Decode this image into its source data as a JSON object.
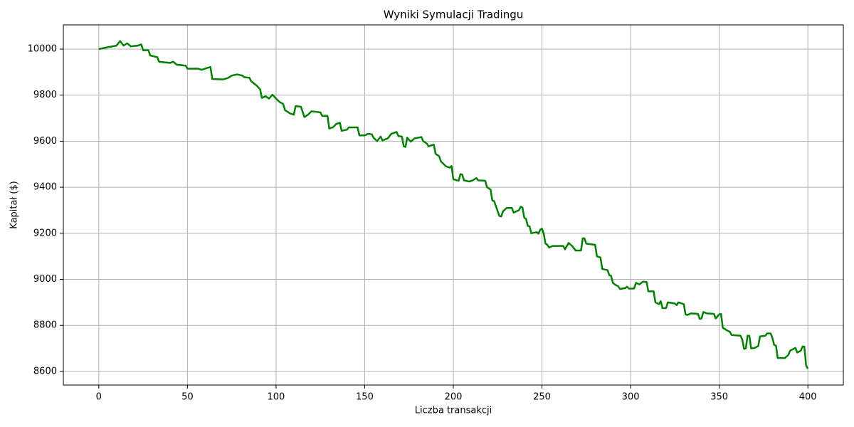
{
  "chart_data": {
    "type": "line",
    "title": "Wyniki Symulacji Tradingu",
    "x_label": "Liczba transakcji",
    "y_label": "Kapitał ($)",
    "x": [
      0,
      5,
      10,
      12,
      14,
      16,
      18,
      22,
      24,
      25,
      28,
      29,
      33,
      34,
      40,
      42,
      44,
      49,
      50,
      56,
      58,
      62,
      63,
      64,
      70,
      73,
      75,
      78,
      81,
      82,
      85,
      86,
      89,
      91,
      92,
      94,
      96,
      98,
      100,
      102,
      104,
      105,
      108,
      110,
      111,
      114,
      116,
      118,
      120,
      125,
      126,
      129,
      130,
      132,
      134,
      136,
      137,
      140,
      141,
      146,
      147,
      150,
      152,
      154,
      155,
      157,
      159,
      160,
      163,
      165,
      168,
      169,
      171,
      172,
      173,
      174,
      176,
      178,
      182,
      183,
      185,
      186,
      189,
      190,
      192,
      193,
      196,
      198,
      199,
      200,
      203,
      204,
      205,
      206,
      209,
      211,
      213,
      214,
      218,
      219,
      221,
      222,
      223,
      224,
      226,
      227,
      228,
      230,
      233,
      234,
      237,
      238,
      239,
      240,
      241,
      242,
      243,
      244,
      247,
      248,
      249,
      250,
      251,
      252,
      253,
      254,
      256,
      262,
      263,
      265,
      267,
      269,
      272,
      273,
      274,
      275,
      280,
      281,
      283,
      284,
      287,
      288,
      289,
      290,
      291,
      293,
      294,
      297,
      298,
      299,
      302,
      303,
      305,
      307,
      309,
      310,
      313,
      314,
      316,
      317,
      318,
      320,
      321,
      325,
      326,
      327,
      330,
      331,
      332,
      334,
      338,
      339,
      340,
      341,
      343,
      347,
      348,
      350,
      351,
      352,
      354,
      356,
      357,
      362,
      363,
      364,
      365,
      366,
      367,
      368,
      370,
      372,
      373,
      376,
      377,
      379,
      380,
      381,
      382,
      383,
      387,
      389,
      390,
      393,
      394,
      396,
      397,
      398,
      399,
      400
    ],
    "values": [
      10000,
      10008,
      10015,
      10035,
      10015,
      10025,
      10012,
      10015,
      10020,
      9995,
      9995,
      9972,
      9965,
      9945,
      9940,
      9945,
      9932,
      9928,
      9915,
      9915,
      9910,
      9920,
      9922,
      9870,
      9868,
      9875,
      9885,
      9890,
      9885,
      9878,
      9875,
      9860,
      9842,
      9825,
      9788,
      9795,
      9785,
      9802,
      9785,
      9770,
      9762,
      9735,
      9720,
      9715,
      9752,
      9750,
      9705,
      9715,
      9730,
      9725,
      9710,
      9710,
      9655,
      9660,
      9675,
      9680,
      9645,
      9650,
      9660,
      9660,
      9625,
      9625,
      9632,
      9630,
      9615,
      9600,
      9620,
      9603,
      9612,
      9632,
      9640,
      9622,
      9620,
      9578,
      9575,
      9615,
      9598,
      9612,
      9618,
      9600,
      9590,
      9578,
      9585,
      9545,
      9535,
      9512,
      9490,
      9485,
      9492,
      9435,
      9428,
      9457,
      9455,
      9430,
      9425,
      9430,
      9440,
      9430,
      9428,
      9400,
      9390,
      9342,
      9340,
      9318,
      9275,
      9273,
      9295,
      9310,
      9310,
      9290,
      9300,
      9315,
      9312,
      9268,
      9262,
      9232,
      9230,
      9200,
      9205,
      9198,
      9215,
      9220,
      9198,
      9155,
      9150,
      9138,
      9145,
      9145,
      9130,
      9158,
      9145,
      9125,
      9125,
      9178,
      9178,
      9155,
      9150,
      9100,
      9095,
      9045,
      9040,
      9018,
      9015,
      8985,
      8978,
      8970,
      8958,
      8962,
      8968,
      8960,
      8960,
      8985,
      8978,
      8990,
      8988,
      8948,
      8948,
      8900,
      8892,
      8905,
      8875,
      8875,
      8900,
      8895,
      8888,
      8900,
      8892,
      8848,
      8845,
      8852,
      8850,
      8828,
      8830,
      8858,
      8852,
      8850,
      8830,
      8848,
      8850,
      8790,
      8780,
      8772,
      8758,
      8755,
      8738,
      8698,
      8700,
      8755,
      8755,
      8700,
      8702,
      8710,
      8752,
      8755,
      8765,
      8765,
      8745,
      8715,
      8712,
      8658,
      8658,
      8672,
      8690,
      8702,
      8682,
      8690,
      8708,
      8708,
      8625,
      8612
    ],
    "color": "#008000",
    "xlim": [
      -20,
      420
    ],
    "ylim": [
      8541,
      10105
    ],
    "xticks": [
      0,
      50,
      100,
      150,
      200,
      250,
      300,
      350,
      400
    ],
    "yticks": [
      8600,
      8800,
      9000,
      9200,
      9400,
      9600,
      9800,
      10000
    ],
    "grid": true
  }
}
